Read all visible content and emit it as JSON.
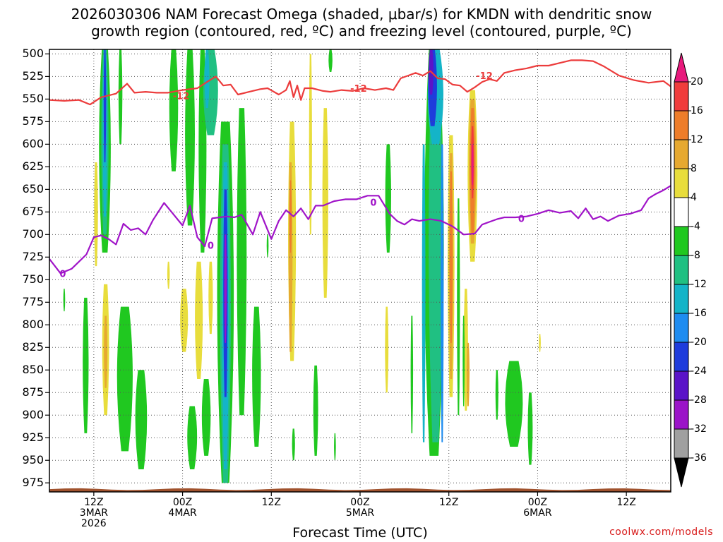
{
  "title_line1": "2026030306 NAM Forecast Omega (shaded, μbar/s) for KMDN with dendritic snow",
  "title_line2": "growth region (contoured, red, ºC) and freezing level (contoured, purple, ºC)",
  "xlabel": "Forecast Time (UTC)",
  "credit": "coolwx.com/models",
  "chart_data": {
    "type": "heatmap",
    "title": "2026030306 NAM Forecast Omega (shaded, μbar/s) for KMDN with dendritic snow growth region (contoured, red, ºC) and freezing level (contoured, purple, ºC)",
    "xlabel": "Forecast Time (UTC)",
    "ylabel": "",
    "x_range_hours_from_init": [
      0,
      84
    ],
    "y_axis": "pressure (hPa), inverted",
    "ylim": [
      985,
      495
    ],
    "y_ticks": [
      500,
      525,
      550,
      575,
      600,
      625,
      650,
      675,
      700,
      725,
      750,
      775,
      800,
      825,
      850,
      875,
      900,
      925,
      950,
      975
    ],
    "x_ticks": [
      {
        "hour": 6,
        "label": "12Z\n3MAR\n2026"
      },
      {
        "hour": 18,
        "label": "00Z\n4MAR"
      },
      {
        "hour": 30,
        "label": "12Z"
      },
      {
        "hour": 42,
        "label": "00Z\n5MAR"
      },
      {
        "hour": 54,
        "label": "12Z"
      },
      {
        "hour": 66,
        "label": "00Z\n6MAR"
      },
      {
        "hour": 78,
        "label": "12Z"
      }
    ],
    "grid": true,
    "colorbar": {
      "ticks": [
        "20",
        "16",
        "12",
        "8",
        "4",
        "-4",
        "-8",
        "-12",
        "-16",
        "-20",
        "-24",
        "-28",
        "-32",
        "-36"
      ],
      "bins": [
        {
          "range": [
            20,
            99
          ],
          "color": "#e8197c"
        },
        {
          "range": [
            16,
            20
          ],
          "color": "#f03c3c"
        },
        {
          "range": [
            12,
            16
          ],
          "color": "#ee7d2a"
        },
        {
          "range": [
            8,
            12
          ],
          "color": "#e6a930"
        },
        {
          "range": [
            4,
            8
          ],
          "color": "#e8dd3c"
        },
        {
          "range": [
            -4,
            4
          ],
          "color": "#ffffff"
        },
        {
          "range": [
            -8,
            -4
          ],
          "color": "#20c820"
        },
        {
          "range": [
            -12,
            -8
          ],
          "color": "#20c082"
        },
        {
          "range": [
            -16,
            -12
          ],
          "color": "#14b4c8"
        },
        {
          "range": [
            -20,
            -16
          ],
          "color": "#1e8cf0"
        },
        {
          "range": [
            -24,
            -20
          ],
          "color": "#1e3cdc"
        },
        {
          "range": [
            -28,
            -24
          ],
          "color": "#5a14c8"
        },
        {
          "range": [
            -32,
            -28
          ],
          "color": "#9b14c8"
        },
        {
          "range": [
            -36,
            -32
          ],
          "color": "#a0a0a0"
        },
        {
          "range": [
            -99,
            -36
          ],
          "color": "#000000"
        }
      ]
    },
    "contours": [
      {
        "level": -12,
        "color": "#ec3c3c",
        "labels": [
          {
            "x": 17.8,
            "y": 546,
            "text": "-12"
          },
          {
            "x": 41.8,
            "y": 538,
            "text": "-12"
          },
          {
            "x": 58.8,
            "y": 524,
            "text": "-12"
          }
        ],
        "x": [
          0,
          2,
          4,
          5.5,
          7,
          9,
          10.5,
          11.5,
          13,
          14.5,
          16,
          18,
          20,
          21.5,
          22.5,
          23.5,
          24.5,
          25.5,
          27,
          28.5,
          29.5,
          31,
          32,
          32.5,
          33,
          33.5,
          34,
          34.5,
          35.5,
          37,
          38,
          39.5,
          41,
          42.5,
          44,
          45.5,
          46.5,
          47.5,
          48.5,
          49.5,
          50.5,
          51.5,
          52.5,
          53.5,
          54.5,
          55.5,
          56.5,
          57.5,
          58.5,
          59.5,
          60.5,
          61.5,
          63,
          64.5,
          66,
          67.5,
          69,
          70.5,
          72,
          73.5,
          75,
          77,
          79,
          81,
          83,
          84
        ],
        "y": [
          551,
          552,
          551,
          556,
          548,
          544,
          533,
          543,
          542,
          543,
          543,
          540,
          538,
          530,
          525,
          535,
          534,
          545,
          542,
          539,
          538,
          545,
          540,
          530,
          548,
          535,
          551,
          538,
          538,
          541,
          542,
          540,
          541,
          538,
          540,
          538,
          540,
          527,
          524,
          521,
          524,
          519,
          527,
          528,
          534,
          535,
          542,
          537,
          531,
          528,
          530,
          521,
          518,
          516,
          513,
          513,
          510,
          507,
          507,
          508,
          514,
          524,
          529,
          532,
          530,
          536
        ]
      },
      {
        "level": 0,
        "color": "#a014c8",
        "labels": [
          {
            "x": 1.8,
            "y": 743,
            "text": "0"
          },
          {
            "x": 21.8,
            "y": 712,
            "text": "0"
          },
          {
            "x": 43.8,
            "y": 664,
            "text": "0"
          },
          {
            "x": 63.8,
            "y": 682,
            "text": "0"
          }
        ],
        "x": [
          0,
          1.5,
          3,
          5,
          6,
          7,
          8,
          9,
          10,
          11,
          12,
          13,
          14,
          15.5,
          16.5,
          18,
          19,
          20,
          21,
          22,
          23,
          24,
          25,
          26,
          27.5,
          28.5,
          30,
          31,
          32,
          33,
          34,
          35,
          36,
          37,
          38.5,
          40,
          41.5,
          43,
          44.5,
          46,
          47,
          48,
          49,
          50,
          51.5,
          53,
          54.5,
          56,
          57.5,
          58.5,
          59.5,
          60.5,
          61.5,
          63,
          64.5,
          66,
          67.5,
          69,
          70.5,
          71.5,
          72.5,
          73.5,
          74.5,
          75.5,
          77,
          78.5,
          80,
          81,
          82,
          83,
          84
        ],
        "y": [
          727,
          743,
          738,
          722,
          703,
          701,
          705,
          711,
          688,
          695,
          693,
          700,
          684,
          665,
          675,
          690,
          668,
          703,
          713,
          682,
          681,
          680,
          681,
          678,
          700,
          675,
          705,
          685,
          673,
          680,
          671,
          683,
          668,
          668,
          663,
          661,
          661,
          657,
          657,
          677,
          685,
          689,
          683,
          685,
          683,
          685,
          691,
          700,
          699,
          689,
          686,
          683,
          681,
          681,
          680,
          677,
          673,
          676,
          674,
          682,
          671,
          683,
          680,
          685,
          679,
          677,
          673,
          660,
          655,
          651,
          646
        ]
      }
    ],
    "omega_regions": [
      {
        "x": 7.5,
        "p_top": 495,
        "p_bottom": 720,
        "hw": 1.2,
        "value": -8
      },
      {
        "x": 7.5,
        "p_top": 495,
        "p_bottom": 700,
        "hw": 0.75,
        "value": -12
      },
      {
        "x": 7.5,
        "p_top": 495,
        "p_bottom": 680,
        "hw": 0.45,
        "value": -16
      },
      {
        "x": 7.5,
        "p_top": 495,
        "p_bottom": 620,
        "hw": 0.25,
        "value": -24
      },
      {
        "x": 6.3,
        "p_top": 620,
        "p_bottom": 735,
        "hw": 0.4,
        "value": 4
      },
      {
        "x": 9.6,
        "p_top": 495,
        "p_bottom": 600,
        "hw": 0.4,
        "value": -8
      },
      {
        "x": 4.9,
        "p_top": 770,
        "p_bottom": 920,
        "hw": 0.6,
        "value": -8
      },
      {
        "x": 7.6,
        "p_top": 755,
        "p_bottom": 900,
        "hw": 0.7,
        "value": 4
      },
      {
        "x": 7.6,
        "p_top": 790,
        "p_bottom": 870,
        "hw": 0.35,
        "value": 8
      },
      {
        "x": 10.2,
        "p_top": 780,
        "p_bottom": 940,
        "hw": 1.6,
        "value": -8
      },
      {
        "x": 12.4,
        "p_top": 850,
        "p_bottom": 960,
        "hw": 1.2,
        "value": -8
      },
      {
        "x": 16.8,
        "p_top": 495,
        "p_bottom": 630,
        "hw": 0.9,
        "value": -8
      },
      {
        "x": 19.0,
        "p_top": 495,
        "p_bottom": 690,
        "hw": 1.0,
        "value": -8
      },
      {
        "x": 20.7,
        "p_top": 495,
        "p_bottom": 720,
        "hw": 0.8,
        "value": -8
      },
      {
        "x": 21.8,
        "p_top": 495,
        "p_bottom": 590,
        "hw": 1.5,
        "value": -12
      },
      {
        "x": 21.3,
        "p_top": 495,
        "p_bottom": 560,
        "hw": 0.5,
        "value": -16
      },
      {
        "x": 16.1,
        "p_top": 730,
        "p_bottom": 760,
        "hw": 0.25,
        "value": 4
      },
      {
        "x": 18.2,
        "p_top": 760,
        "p_bottom": 830,
        "hw": 0.8,
        "value": 4
      },
      {
        "x": 20.2,
        "p_top": 730,
        "p_bottom": 860,
        "hw": 0.8,
        "value": 4
      },
      {
        "x": 21.8,
        "p_top": 730,
        "p_bottom": 810,
        "hw": 0.45,
        "value": 4
      },
      {
        "x": 19.3,
        "p_top": 890,
        "p_bottom": 960,
        "hw": 1.0,
        "value": -8
      },
      {
        "x": 21.2,
        "p_top": 860,
        "p_bottom": 945,
        "hw": 0.9,
        "value": -8
      },
      {
        "x": 23.8,
        "p_top": 575,
        "p_bottom": 975,
        "hw": 1.7,
        "value": -8
      },
      {
        "x": 23.8,
        "p_top": 600,
        "p_bottom": 975,
        "hw": 1.1,
        "value": -12
      },
      {
        "x": 23.8,
        "p_top": 620,
        "p_bottom": 960,
        "hw": 0.7,
        "value": -16
      },
      {
        "x": 23.8,
        "p_top": 650,
        "p_bottom": 880,
        "hw": 0.45,
        "value": -24
      },
      {
        "x": 23.8,
        "p_top": 700,
        "p_bottom": 820,
        "hw": 0.25,
        "value": -32
      },
      {
        "x": 26.0,
        "p_top": 560,
        "p_bottom": 900,
        "hw": 1.0,
        "value": -8
      },
      {
        "x": 28.0,
        "p_top": 780,
        "p_bottom": 935,
        "hw": 0.9,
        "value": -8
      },
      {
        "x": 32.8,
        "p_top": 575,
        "p_bottom": 840,
        "hw": 0.8,
        "value": 4
      },
      {
        "x": 32.6,
        "p_top": 620,
        "p_bottom": 830,
        "hw": 0.4,
        "value": 8
      },
      {
        "x": 32.6,
        "p_top": 640,
        "p_bottom": 720,
        "hw": 0.2,
        "value": 12
      },
      {
        "x": 35.3,
        "p_top": 500,
        "p_bottom": 700,
        "hw": 0.3,
        "value": 4
      },
      {
        "x": 37.3,
        "p_top": 560,
        "p_bottom": 770,
        "hw": 0.6,
        "value": 4
      },
      {
        "x": 38.0,
        "p_top": 495,
        "p_bottom": 520,
        "hw": 0.4,
        "value": -8
      },
      {
        "x": 33.0,
        "p_top": 915,
        "p_bottom": 950,
        "hw": 0.3,
        "value": -8
      },
      {
        "x": 36.0,
        "p_top": 845,
        "p_bottom": 945,
        "hw": 0.5,
        "value": -8
      },
      {
        "x": 45.8,
        "p_top": 600,
        "p_bottom": 720,
        "hw": 0.6,
        "value": -8
      },
      {
        "x": 45.6,
        "p_top": 780,
        "p_bottom": 875,
        "hw": 0.35,
        "value": 4
      },
      {
        "x": 52.0,
        "p_top": 495,
        "p_bottom": 945,
        "hw": 2.0,
        "value": -8
      },
      {
        "x": 52.2,
        "p_top": 495,
        "p_bottom": 930,
        "hw": 1.4,
        "value": -12
      },
      {
        "x": 52.2,
        "p_top": 495,
        "p_bottom": 600,
        "hw": 1.6,
        "value": -16
      },
      {
        "x": 51.8,
        "p_top": 495,
        "p_bottom": 580,
        "hw": 0.9,
        "value": -24
      },
      {
        "x": 51.6,
        "p_top": 495,
        "p_bottom": 545,
        "hw": 0.5,
        "value": -28
      },
      {
        "x": 50.6,
        "p_top": 600,
        "p_bottom": 930,
        "hw": 0.35,
        "value": -16
      },
      {
        "x": 53.1,
        "p_top": 600,
        "p_bottom": 930,
        "hw": 0.3,
        "value": -20
      },
      {
        "x": 49.0,
        "p_top": 790,
        "p_bottom": 920,
        "hw": 0.25,
        "value": -8
      },
      {
        "x": 54.3,
        "p_top": 590,
        "p_bottom": 880,
        "hw": 0.7,
        "value": 4
      },
      {
        "x": 54.3,
        "p_top": 610,
        "p_bottom": 860,
        "hw": 0.45,
        "value": 8
      },
      {
        "x": 54.3,
        "p_top": 630,
        "p_bottom": 820,
        "hw": 0.3,
        "value": 12
      },
      {
        "x": 55.3,
        "p_top": 660,
        "p_bottom": 900,
        "hw": 0.3,
        "value": -8
      },
      {
        "x": 57.2,
        "p_top": 540,
        "p_bottom": 730,
        "hw": 1.0,
        "value": 4
      },
      {
        "x": 57.2,
        "p_top": 550,
        "p_bottom": 710,
        "hw": 0.75,
        "value": 8
      },
      {
        "x": 57.2,
        "p_top": 560,
        "p_bottom": 700,
        "hw": 0.5,
        "value": 12
      },
      {
        "x": 57.2,
        "p_top": 580,
        "p_bottom": 660,
        "hw": 0.3,
        "value": 16
      },
      {
        "x": 57.2,
        "p_top": 600,
        "p_bottom": 645,
        "hw": 0.15,
        "value": 20
      },
      {
        "x": 56.3,
        "p_top": 760,
        "p_bottom": 895,
        "hw": 0.45,
        "value": 4
      },
      {
        "x": 56.6,
        "p_top": 820,
        "p_bottom": 890,
        "hw": 0.3,
        "value": 8
      },
      {
        "x": 56.0,
        "p_top": 790,
        "p_bottom": 890,
        "hw": 0.2,
        "value": -8
      },
      {
        "x": 62.8,
        "p_top": 840,
        "p_bottom": 935,
        "hw": 1.8,
        "value": -8
      },
      {
        "x": 65.0,
        "p_top": 875,
        "p_bottom": 955,
        "hw": 0.5,
        "value": -8
      },
      {
        "x": 60.5,
        "p_top": 850,
        "p_bottom": 905,
        "hw": 0.3,
        "value": -8
      },
      {
        "x": 66.3,
        "p_top": 810,
        "p_bottom": 830,
        "hw": 0.1,
        "value": 4
      },
      {
        "x": 2.0,
        "p_top": 760,
        "p_bottom": 785,
        "hw": 0.1,
        "value": -8
      },
      {
        "x": 29.5,
        "p_top": 700,
        "p_bottom": 725,
        "hw": 0.1,
        "value": -8
      },
      {
        "x": 38.6,
        "p_top": 920,
        "p_bottom": 950,
        "hw": 0.15,
        "value": -8
      }
    ],
    "terrain": {
      "color": "#a0522d",
      "p_top_range": [
        981,
        983
      ],
      "y_bottom": 985
    }
  }
}
